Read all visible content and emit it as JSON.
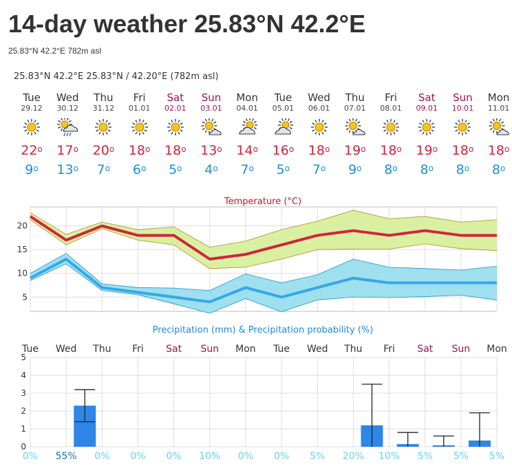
{
  "page": {
    "title": "14-day weather 25.83°N 42.2°E",
    "subtitle": "25.83°N 42.2°E 782m asl",
    "location_line": "25.83°N 42.2°E  25.83°N / 42.20°E (782m asl)"
  },
  "days": [
    {
      "name": "Tue",
      "date": "29.12",
      "weekend": false,
      "icon": "sun-icon",
      "tmax": "22",
      "tmin": "9"
    },
    {
      "name": "Wed",
      "date": "30.12",
      "weekend": false,
      "icon": "sun-cloud-rain-icon",
      "tmax": "17",
      "tmin": "13"
    },
    {
      "name": "Thu",
      "date": "31.12",
      "weekend": false,
      "icon": "sun-icon",
      "tmax": "20",
      "tmin": "7"
    },
    {
      "name": "Fri",
      "date": "01.01",
      "weekend": false,
      "icon": "sun-icon",
      "tmax": "18",
      "tmin": "6"
    },
    {
      "name": "Sat",
      "date": "02.01",
      "weekend": true,
      "icon": "sun-icon",
      "tmax": "18",
      "tmin": "5"
    },
    {
      "name": "Sun",
      "date": "03.01",
      "weekend": true,
      "icon": "sun-cloud-icon",
      "tmax": "13",
      "tmin": "4"
    },
    {
      "name": "Mon",
      "date": "04.01",
      "weekend": false,
      "icon": "cloud-sun-icon",
      "tmax": "14",
      "tmin": "7"
    },
    {
      "name": "Tue",
      "date": "05.01",
      "weekend": false,
      "icon": "cloud-sun-icon",
      "tmax": "16",
      "tmin": "5"
    },
    {
      "name": "Wed",
      "date": "06.01",
      "weekend": false,
      "icon": "sun-icon",
      "tmax": "18",
      "tmin": "7"
    },
    {
      "name": "Thu",
      "date": "07.01",
      "weekend": false,
      "icon": "sun-cloud-icon",
      "tmax": "19",
      "tmin": "9"
    },
    {
      "name": "Fri",
      "date": "08.01",
      "weekend": false,
      "icon": "sun-icon",
      "tmax": "18",
      "tmin": "8"
    },
    {
      "name": "Sat",
      "date": "09.01",
      "weekend": true,
      "icon": "sun-icon",
      "tmax": "19",
      "tmin": "8"
    },
    {
      "name": "Sun",
      "date": "10.01",
      "weekend": true,
      "icon": "sun-icon",
      "tmax": "18",
      "tmin": "8"
    },
    {
      "name": "Mon",
      "date": "11.01",
      "weekend": false,
      "icon": "sun-cloud-icon",
      "tmax": "18",
      "tmin": "8"
    }
  ],
  "degree_symbol": "o",
  "colors": {
    "max_temp": "#d2233c",
    "min_temp": "#1e90d0",
    "weekend": "#a0114d",
    "precip_bar": "#2e86e8",
    "probability": "#6ad0ec",
    "max_band": "#d9f0a0",
    "min_band": "#9fe0ee"
  },
  "chart_data": [
    {
      "type": "line",
      "title": "Temperature (°C)",
      "x": [
        "Tue",
        "Wed",
        "Thu",
        "Fri",
        "Sat",
        "Sun",
        "Mon",
        "Tue",
        "Wed",
        "Thu",
        "Fri",
        "Sat",
        "Sun",
        "Mon"
      ],
      "ylim": [
        2,
        24
      ],
      "yticks": [
        5,
        10,
        15,
        20
      ],
      "grid": true,
      "series": [
        {
          "name": "max",
          "values": [
            22,
            17,
            20,
            18,
            18,
            13,
            14,
            16,
            18,
            19,
            18,
            19,
            18,
            18
          ],
          "upper": [
            22.8,
            18.2,
            20.8,
            19.2,
            19.8,
            15.5,
            16.8,
            19.2,
            21,
            23.3,
            21.5,
            22,
            20.8,
            21.3
          ],
          "lower": [
            21.3,
            16,
            19.4,
            17,
            16,
            11,
            11.3,
            13,
            15,
            15.1,
            15.1,
            16.2,
            15.2,
            14.8
          ]
        },
        {
          "name": "min",
          "values": [
            9,
            13,
            7,
            6,
            5,
            4,
            7,
            5,
            7,
            9,
            8,
            8,
            8,
            8
          ],
          "upper": [
            10,
            14.2,
            7.8,
            7,
            6.9,
            6.4,
            9.9,
            8,
            9.7,
            13,
            11.3,
            11,
            10.7,
            11.5
          ],
          "lower": [
            8.5,
            12,
            6.4,
            5.5,
            3.6,
            1.6,
            4.7,
            1.9,
            4.4,
            5,
            4.9,
            5.1,
            5.4,
            4.4
          ]
        }
      ]
    },
    {
      "type": "bar",
      "title": "Precipitation (mm) & Precipitation probability (%)",
      "categories": [
        "Tue",
        "Wed",
        "Thu",
        "Fri",
        "Sat",
        "Sun",
        "Mon",
        "Tue",
        "Wed",
        "Thu",
        "Fri",
        "Sat",
        "Sun",
        "Mon"
      ],
      "ylim": [
        0,
        5
      ],
      "yticks": [
        0,
        1,
        2,
        3,
        4,
        5
      ],
      "grid": true,
      "values": [
        0,
        2.3,
        0,
        0,
        0,
        0,
        0,
        0,
        0,
        1.2,
        0.15,
        0.08,
        0.35,
        0
      ],
      "error_low": [
        null,
        1.4,
        null,
        null,
        null,
        null,
        null,
        null,
        null,
        0,
        0,
        0,
        0,
        null
      ],
      "error_high": [
        null,
        3.2,
        null,
        null,
        null,
        null,
        null,
        null,
        null,
        3.5,
        0.8,
        0.6,
        1.9,
        null
      ],
      "probabilities": [
        "0%",
        "55%",
        "0%",
        "0%",
        "0%",
        "10%",
        "0%",
        "0%",
        "5%",
        "20%",
        "10%",
        "5%",
        "5%",
        "5%"
      ]
    }
  ]
}
